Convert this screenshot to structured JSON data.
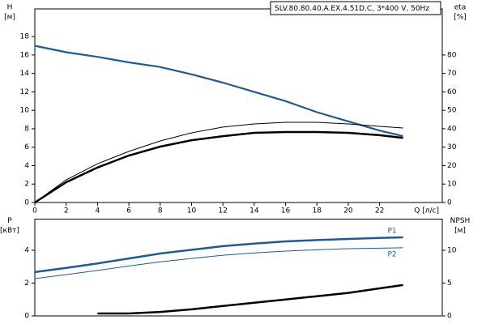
{
  "chart_data": [
    {
      "type": "line",
      "title": "SLV.80.80.40.A.EX.4.51D.C, 3*400 V, 50Hz",
      "ylabel": [
        "H",
        "[м]"
      ],
      "y2label": [
        "eta",
        "[%]"
      ],
      "xlabel": "Q [л/с]",
      "x": [
        0,
        2,
        4,
        6,
        8,
        10,
        12,
        14,
        16,
        18,
        20,
        22,
        23.5
      ],
      "xlim": [
        0,
        26
      ],
      "xticks": [
        0,
        2,
        4,
        6,
        8,
        10,
        12,
        14,
        16,
        18,
        20,
        22
      ],
      "ylim": [
        0,
        21
      ],
      "yticks": [
        0,
        2,
        4,
        6,
        8,
        10,
        12,
        14,
        16,
        18
      ],
      "y2lim": [
        0,
        105
      ],
      "y2ticks": [
        0,
        10,
        20,
        30,
        40,
        50,
        60,
        70,
        80
      ],
      "series": [
        {
          "color": "#1f5a96",
          "width": 2.2,
          "values": [
            17,
            16.3,
            15.8,
            15.2,
            14.7,
            13.9,
            13.0,
            12.0,
            11.0,
            9.8,
            8.8,
            7.8,
            7.2
          ]
        },
        {
          "color": "#000000",
          "width": 1,
          "axis": "y2",
          "values": [
            0,
            12.3,
            21,
            27.7,
            33.4,
            37.8,
            40.9,
            42.6,
            43.5,
            43.5,
            42.6,
            41.3,
            40.4
          ]
        },
        {
          "color": "#000000",
          "width": 2.5,
          "axis": "y2",
          "values": [
            0,
            11,
            19,
            25.5,
            30.3,
            33.8,
            36,
            37.8,
            38.2,
            38.2,
            37.8,
            36.5,
            35
          ]
        }
      ]
    },
    {
      "type": "line",
      "ylabel": [
        "P",
        "[кВт]"
      ],
      "y2label": [
        "NPSH",
        "[м]"
      ],
      "x": [
        0,
        2,
        4,
        6,
        8,
        10,
        12,
        14,
        16,
        18,
        20,
        22,
        23.5
      ],
      "xlim": [
        0,
        26
      ],
      "ylim": [
        0,
        5.9
      ],
      "yticks": [
        0,
        2,
        4
      ],
      "y2lim": [
        0,
        14.75
      ],
      "y2ticks": [
        0,
        5,
        10
      ],
      "series": [
        {
          "name": "P1",
          "color": "#1f5a96",
          "width": 2.5,
          "values": [
            2.67,
            2.93,
            3.2,
            3.5,
            3.8,
            4.03,
            4.25,
            4.41,
            4.54,
            4.62,
            4.69,
            4.75,
            4.79
          ]
        },
        {
          "name": "P2",
          "color": "#1f5a96",
          "width": 1,
          "values": [
            2.27,
            2.52,
            2.77,
            3.04,
            3.3,
            3.5,
            3.7,
            3.84,
            3.95,
            4.03,
            4.1,
            4.13,
            4.15
          ]
        },
        {
          "color": "#000000",
          "width": 2.5,
          "axis": "y2",
          "values": [
            null,
            null,
            0.37,
            0.37,
            0.6,
            1.0,
            1.5,
            2.0,
            2.5,
            3.0,
            3.5,
            4.2,
            4.7
          ]
        }
      ]
    }
  ]
}
